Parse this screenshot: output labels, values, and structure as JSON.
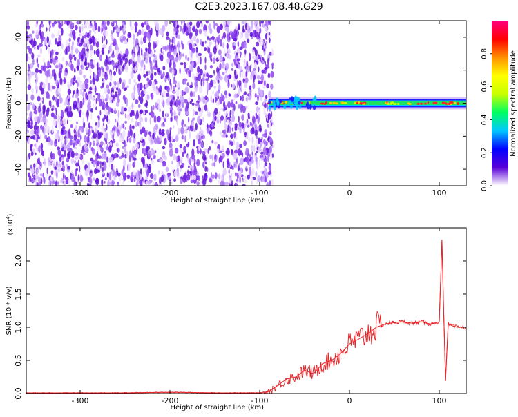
{
  "title": "C2E3.2023.167.08.48.G29",
  "chart_data": [
    {
      "type": "heatmap",
      "xlabel": "Height of straight line (km)",
      "ylabel": "Frequency (Hz)",
      "xlim": [
        -360,
        130
      ],
      "ylim": [
        -50,
        50
      ],
      "xticks": [
        -300,
        -200,
        -100,
        0,
        100
      ],
      "yticks": [
        -40,
        -20,
        0,
        20,
        40
      ],
      "noise_region_x": [
        -360,
        -90
      ],
      "signal_region_x": [
        -90,
        130
      ],
      "signal_frequency_hz": 0,
      "colorbar": {
        "label": "Normalized spectral amplitude",
        "range": [
          0,
          1
        ],
        "ticks": [
          0.0,
          0.2,
          0.4,
          0.6,
          0.8
        ],
        "colors": [
          "#ffffff",
          "#5a00d8",
          "#0000ff",
          "#00c8ff",
          "#00ff60",
          "#c8ff00",
          "#ffff00",
          "#ff9000",
          "#ff0000",
          "#ff0080"
        ]
      }
    },
    {
      "type": "line",
      "xlabel": "Height of straight line (km)",
      "ylabel": "SNR (10 * v/v)",
      "scale_label": "(x10",
      "scale_exponent": "4",
      "scale_suffix": ")",
      "xlim": [
        -360,
        130
      ],
      "ylim": [
        0,
        2.5
      ],
      "xticks": [
        -300,
        -200,
        -100,
        0,
        100
      ],
      "yticks": [
        0.0,
        0.5,
        1.0,
        1.5,
        2.0
      ],
      "color": "#e8262a",
      "x": [
        -360,
        -300,
        -250,
        -200,
        -150,
        -100,
        -90,
        -80,
        -70,
        -60,
        -50,
        -40,
        -30,
        -20,
        -10,
        0,
        10,
        20,
        30,
        40,
        50,
        60,
        70,
        80,
        90,
        100,
        103,
        105,
        107,
        110,
        115,
        120,
        130
      ],
      "values": [
        0.01,
        0.01,
        0.01,
        0.02,
        0.01,
        0.01,
        0.03,
        0.12,
        0.22,
        0.25,
        0.35,
        0.3,
        0.45,
        0.5,
        0.6,
        0.75,
        0.82,
        0.9,
        1.0,
        1.05,
        1.07,
        1.08,
        1.06,
        1.08,
        1.05,
        1.08,
        2.3,
        1.2,
        0.2,
        1.05,
        1.02,
        1.0,
        1.0
      ]
    }
  ]
}
